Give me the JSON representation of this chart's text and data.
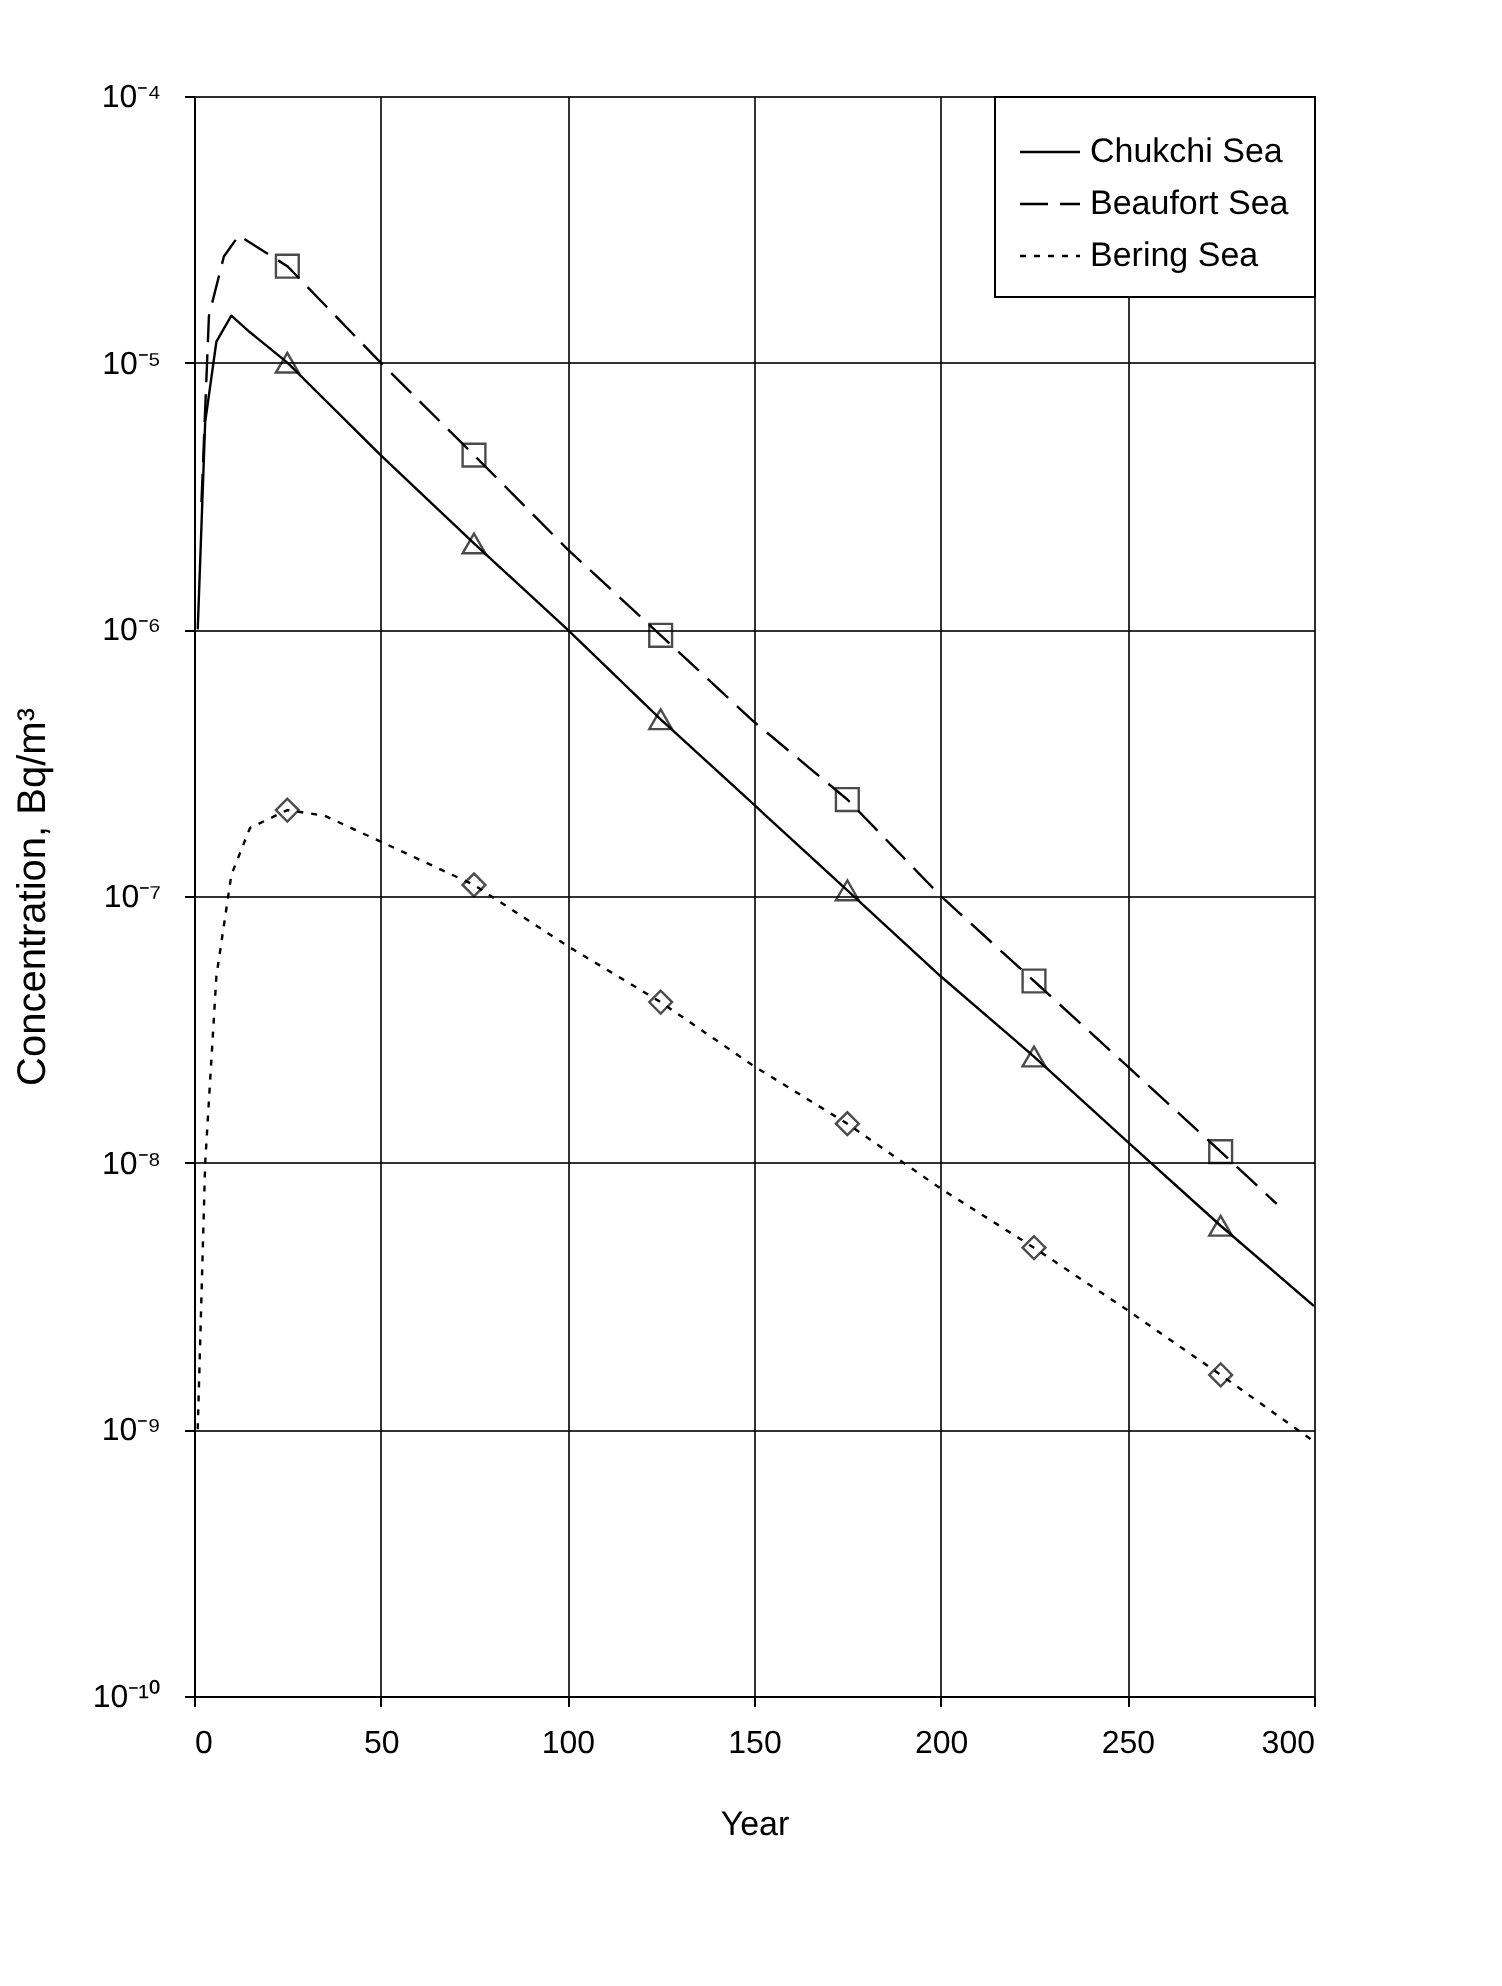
{
  "chart_data": {
    "type": "line",
    "xlabel": "Year",
    "ylabel": "Concentration, Bq/m³",
    "log": "y",
    "xlim": [
      0,
      300
    ],
    "xticks": [
      0,
      50,
      100,
      150,
      200,
      250,
      300
    ],
    "ylim": [
      1e-10,
      0.0001
    ],
    "yticks": [
      {
        "value": 1e-10,
        "label": "10⁻¹⁰"
      },
      {
        "value": 1e-09,
        "label": "10⁻⁹"
      },
      {
        "value": 1e-08,
        "label": "10⁻⁸"
      },
      {
        "value": 1e-07,
        "label": "10⁻⁷"
      },
      {
        "value": 1e-06,
        "label": "10⁻⁶"
      },
      {
        "value": 1e-05,
        "label": "10⁻⁵"
      },
      {
        "value": 0.0001,
        "label": "10⁻⁴"
      }
    ],
    "grid": true,
    "legend": "top right",
    "series": [
      {
        "name": "Chukchi Sea",
        "color": "#000000",
        "line_style": "solid",
        "marker": "none",
        "x": [
          1,
          3,
          6,
          10,
          15,
          25,
          50,
          75,
          100,
          125,
          150,
          175,
          200,
          225,
          250,
          275,
          300
        ],
        "values": [
          1e-06,
          6e-06,
          1.2e-05,
          1.5e-05,
          1.3e-05,
          1e-05,
          4.5e-06,
          2.1e-06,
          1e-06,
          4.6e-07,
          2.2e-07,
          1.05e-07,
          5e-08,
          2.5e-08,
          1.2e-08,
          5.8e-09,
          2.9e-09
        ]
      },
      {
        "name": "Beaufort Sea",
        "color": "#000000",
        "line_style": "dashed",
        "marker": "none",
        "x": [
          2,
          4,
          8,
          12,
          25,
          50,
          75,
          100,
          125,
          150,
          175,
          200,
          225,
          250,
          275,
          290
        ],
        "values": [
          3e-06,
          1.5e-05,
          2.5e-05,
          3e-05,
          2.3e-05,
          1e-05,
          4.5e-06,
          2e-06,
          9.5e-07,
          4.5e-07,
          2.3e-07,
          1e-07,
          4.8e-08,
          2.3e-08,
          1.1e-08,
          7e-09
        ]
      },
      {
        "name": "Bering Sea",
        "color": "#000000",
        "line_style": "dotted",
        "marker": "none",
        "x": [
          1,
          3,
          6,
          10,
          15,
          25,
          35,
          50,
          75,
          100,
          125,
          150,
          175,
          200,
          225,
          250,
          275,
          300
        ],
        "values": [
          1e-09,
          1e-08,
          5e-08,
          1.2e-07,
          1.8e-07,
          2.1e-07,
          2e-07,
          1.6e-07,
          1.1e-07,
          6.5e-08,
          4e-08,
          2.3e-08,
          1.4e-08,
          8e-09,
          4.8e-09,
          2.8e-09,
          1.6e-09,
          9e-10
        ]
      },
      {
        "color": "#000000",
        "type": "scatter",
        "marker": "triangle",
        "x": [
          25,
          75,
          125,
          175,
          225,
          275
        ],
        "values": [
          1e-05,
          2.1e-06,
          4.6e-07,
          1.05e-07,
          2.5e-08,
          5.8e-09
        ]
      },
      {
        "color": "#000000",
        "type": "scatter",
        "marker": "square",
        "x": [
          25,
          75,
          125,
          175,
          225,
          275
        ],
        "values": [
          2.3e-05,
          4.5e-06,
          9.5e-07,
          2.3e-07,
          4.8e-08,
          1.1e-08
        ]
      },
      {
        "color": "#000000",
        "type": "scatter",
        "marker": "diamond",
        "x": [
          25,
          75,
          125,
          175,
          225,
          275
        ],
        "values": [
          2.1e-07,
          1.1e-07,
          4e-08,
          1.4e-08,
          4.8e-09,
          1.6e-09
        ]
      }
    ]
  }
}
